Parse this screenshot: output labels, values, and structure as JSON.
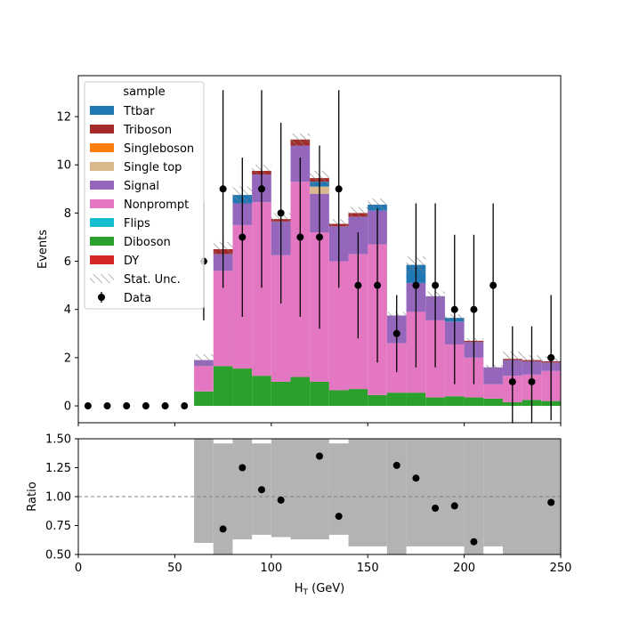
{
  "chart_data": [
    {
      "type": "bar",
      "stacked": true,
      "xlabel": "",
      "ylabel": "Events",
      "xlim": [
        0,
        250
      ],
      "ylim": [
        -0.7,
        13.7
      ],
      "x_ticks": [
        "0",
        "50",
        "100",
        "150",
        "200",
        "250"
      ],
      "y_ticks": [
        "0",
        "2",
        "4",
        "6",
        "8",
        "10",
        "12"
      ],
      "bin_edges": [
        0,
        10,
        20,
        30,
        40,
        50,
        60,
        70,
        80,
        90,
        100,
        110,
        120,
        130,
        140,
        150,
        160,
        170,
        180,
        190,
        200,
        210,
        220,
        230,
        240,
        250
      ],
      "legend": {
        "title": "sample",
        "placement": "upper-left",
        "entries": [
          "Ttbar",
          "Triboson",
          "Singleboson",
          "Single top",
          "Signal",
          "Nonprompt",
          "Flips",
          "Diboson",
          "DY",
          "Stat. Unc.",
          "Data"
        ]
      },
      "series": [
        {
          "name": "Diboson",
          "color": "#2ca02c",
          "values": [
            0,
            0,
            0,
            0,
            0,
            0,
            0.6,
            1.65,
            1.55,
            1.25,
            1.0,
            1.2,
            1.0,
            0.65,
            0.7,
            0.45,
            0.55,
            0.55,
            0.35,
            0.4,
            0.35,
            0.3,
            0.15,
            0.25,
            0.2
          ]
        },
        {
          "name": "Nonprompt",
          "color": "#e377c2",
          "values": [
            0,
            0,
            0,
            0,
            0,
            0,
            1.05,
            3.95,
            5.95,
            7.2,
            5.25,
            8.1,
            6.2,
            5.35,
            5.6,
            6.25,
            2.05,
            3.35,
            3.2,
            2.15,
            1.65,
            0.6,
            1.1,
            1.05,
            1.25
          ]
        },
        {
          "name": "Signal",
          "color": "#9467bd",
          "values": [
            0,
            0,
            0,
            0,
            0,
            0,
            0.25,
            0.7,
            0.9,
            1.15,
            1.4,
            1.5,
            1.6,
            1.45,
            1.55,
            1.4,
            1.15,
            1.2,
            1.0,
            0.95,
            0.65,
            0.7,
            0.65,
            0.55,
            0.35
          ]
        },
        {
          "name": "Single top",
          "color": "#dbb98f",
          "values": [
            0,
            0,
            0,
            0,
            0,
            0,
            0,
            0,
            0,
            0,
            0,
            0,
            0.3,
            0,
            0,
            0,
            0,
            0,
            0,
            0,
            0,
            0,
            0,
            0,
            0
          ]
        },
        {
          "name": "Ttbar",
          "color": "#1f77b4",
          "values": [
            0,
            0,
            0,
            0,
            0,
            0,
            0,
            0,
            0.35,
            0,
            0,
            0,
            0.2,
            0,
            0,
            0.25,
            0,
            0.75,
            0,
            0.15,
            0,
            0,
            0,
            0,
            0
          ]
        },
        {
          "name": "Triboson",
          "color": "#a52a2a",
          "values": [
            0,
            0,
            0,
            0,
            0,
            0,
            0,
            0.2,
            0,
            0.15,
            0.1,
            0.25,
            0.15,
            0.1,
            0.15,
            0,
            0,
            0,
            0,
            0,
            0.05,
            0,
            0.05,
            0.05,
            0.05
          ]
        }
      ],
      "stat_unc": [
        0,
        0,
        0,
        0,
        0,
        0,
        0.25,
        0.3,
        0.35,
        0.25,
        0.25,
        0.25,
        0.3,
        0.2,
        0.25,
        0.25,
        0.15,
        0.35,
        0.2,
        0.15,
        0.1,
        0.1,
        0.3,
        0.2,
        0.2
      ],
      "data": {
        "name": "Data",
        "x": [
          5,
          15,
          25,
          35,
          45,
          55,
          65,
          75,
          85,
          95,
          105,
          115,
          125,
          135,
          145,
          155,
          165,
          175,
          185,
          195,
          205,
          215,
          225,
          235,
          245
        ],
        "y": [
          0,
          0,
          0,
          0,
          0,
          0,
          6,
          9,
          7,
          9,
          8,
          7,
          7,
          9,
          5,
          5,
          3,
          5,
          5,
          4,
          4,
          5,
          1,
          1,
          2
        ],
        "err": [
          0,
          0,
          0,
          0,
          0,
          0,
          2.45,
          4.1,
          3.3,
          4.1,
          3.75,
          3.3,
          3.8,
          4.1,
          2.2,
          3.2,
          1.6,
          3.4,
          3.4,
          3.1,
          3.1,
          3.4,
          2.3,
          2.3,
          2.6
        ]
      }
    },
    {
      "type": "scatter",
      "xlabel": "H$_T$ (GeV)",
      "ylabel": "Ratio",
      "xlim": [
        0,
        250
      ],
      "ylim": [
        0.5,
        1.5
      ],
      "x_ticks": [
        "0",
        "50",
        "100",
        "150",
        "200",
        "250"
      ],
      "y_ticks": [
        "0.50",
        "0.75",
        "1.00",
        "1.25",
        "1.50"
      ],
      "reference_line": 1.0,
      "unc_band": [
        {
          "x0": 60,
          "x1": 70,
          "lo": 0.6,
          "hi": 1.5
        },
        {
          "x0": 70,
          "x1": 80,
          "lo": 0.5,
          "hi": 1.46
        },
        {
          "x0": 80,
          "x1": 90,
          "lo": 0.63,
          "hi": 1.5
        },
        {
          "x0": 90,
          "x1": 100,
          "lo": 0.67,
          "hi": 1.46
        },
        {
          "x0": 100,
          "x1": 110,
          "lo": 0.65,
          "hi": 1.5
        },
        {
          "x0": 110,
          "x1": 130,
          "lo": 0.63,
          "hi": 1.5
        },
        {
          "x0": 130,
          "x1": 140,
          "lo": 0.67,
          "hi": 1.46
        },
        {
          "x0": 140,
          "x1": 160,
          "lo": 0.57,
          "hi": 1.5
        },
        {
          "x0": 160,
          "x1": 170,
          "lo": 0.5,
          "hi": 1.5
        },
        {
          "x0": 170,
          "x1": 200,
          "lo": 0.57,
          "hi": 1.5
        },
        {
          "x0": 200,
          "x1": 210,
          "lo": 0.5,
          "hi": 1.5
        },
        {
          "x0": 210,
          "x1": 220,
          "lo": 0.57,
          "hi": 1.5
        },
        {
          "x0": 220,
          "x1": 250,
          "lo": 0.5,
          "hi": 1.5
        }
      ],
      "points": {
        "x": [
          75,
          85,
          95,
          105,
          125,
          135,
          165,
          175,
          185,
          195,
          205,
          245
        ],
        "y": [
          0.72,
          1.25,
          1.06,
          0.97,
          1.35,
          0.83,
          1.27,
          1.16,
          0.9,
          0.92,
          0.61,
          0.95
        ]
      }
    }
  ],
  "colors": {
    "data": "#000000",
    "band": "#b3b3b3",
    "reference": "#808080",
    "hatch": "#808080"
  }
}
